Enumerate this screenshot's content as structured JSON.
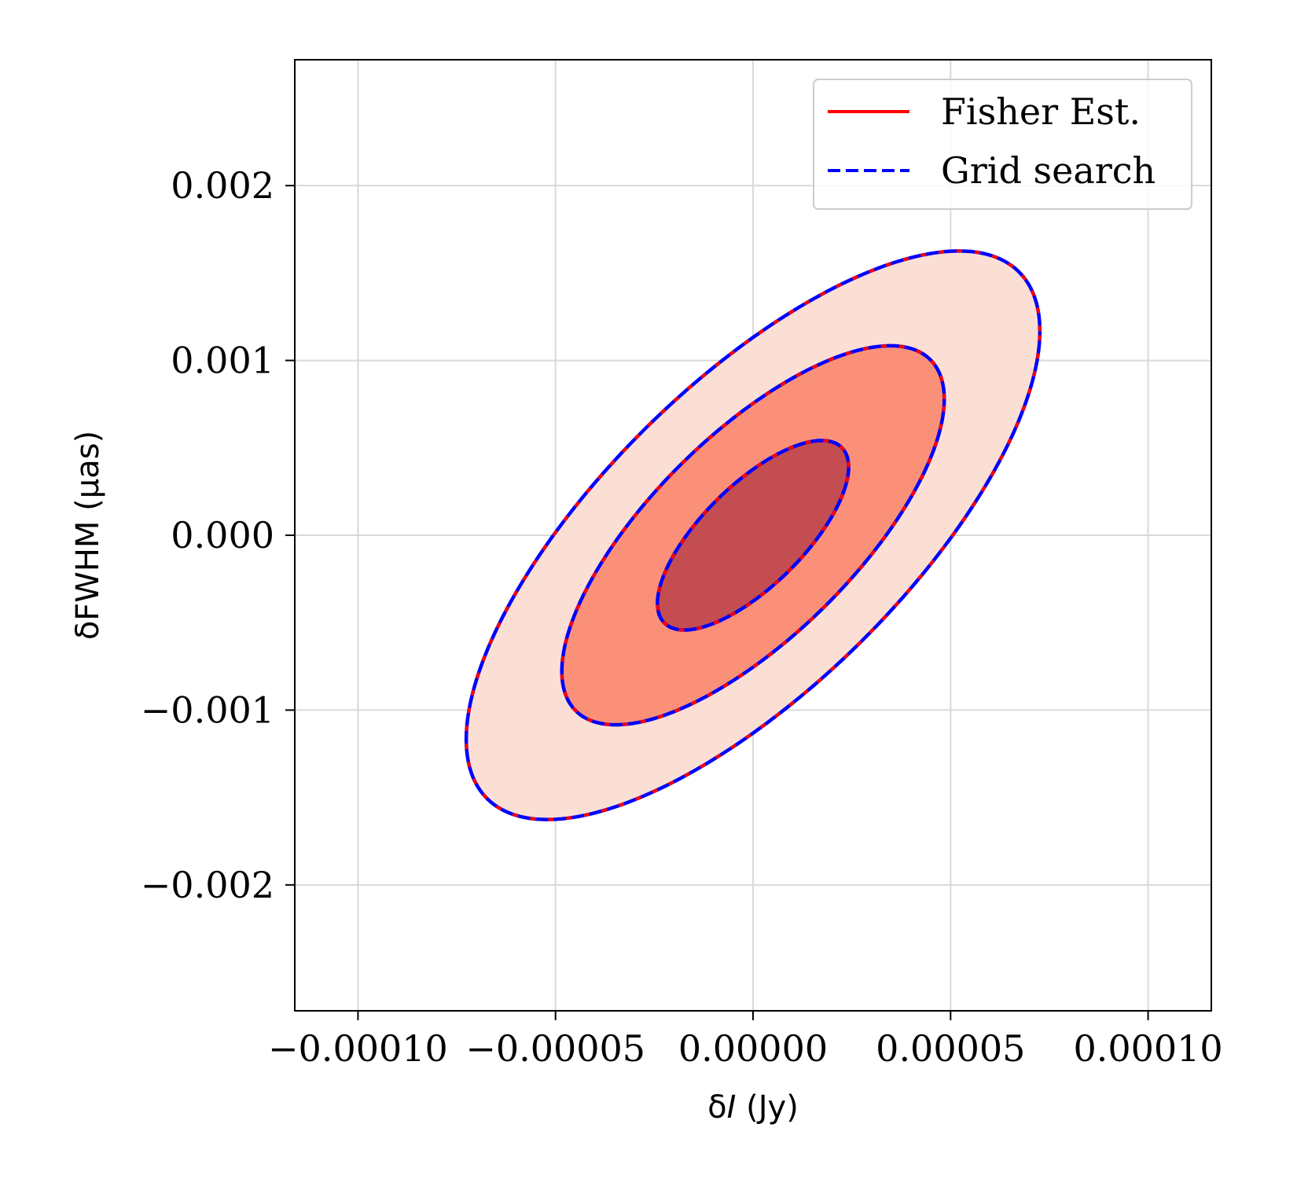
{
  "chart_data": {
    "type": "contour",
    "xlabel_prefix": "δ",
    "xlabel_var": "I",
    "xlabel_unit": " (Jy)",
    "ylabel": "δFWHM (μas)",
    "xlim": [
      -0.000116,
      0.000116
    ],
    "ylim": [
      -0.00272,
      0.00272
    ],
    "x_ticks": [
      -0.0001,
      -5e-05,
      0.0,
      5e-05,
      0.0001
    ],
    "x_tick_labels": [
      "−0.00010",
      "−0.00005",
      "0.00000",
      "0.00005",
      "0.00010"
    ],
    "y_ticks": [
      -0.002,
      -0.001,
      0.0,
      0.001,
      0.002
    ],
    "y_tick_labels": [
      "−0.002",
      "−0.001",
      "0.000",
      "0.001",
      "0.002"
    ],
    "grid": true,
    "legend": {
      "position": "top-right",
      "entries": [
        {
          "label": "Fisher Est.",
          "color": "#ff0000",
          "style": "solid"
        },
        {
          "label": "Grid search",
          "color": "#0000ff",
          "style": "dashed"
        }
      ]
    },
    "ellipse_model": {
      "center": [
        0.0,
        0.0
      ],
      "sigma_x": 2.42e-05,
      "sigma_y": 0.000542,
      "correlation": 0.718
    },
    "contours": [
      {
        "level_sigma": 3,
        "fill": "#fcdfd4"
      },
      {
        "level_sigma": 2,
        "fill": "#fb9079"
      },
      {
        "level_sigma": 1,
        "fill": "#c34d51"
      }
    ],
    "colors": {
      "fisher": "#ff0000",
      "grid": "#0000ff"
    }
  }
}
